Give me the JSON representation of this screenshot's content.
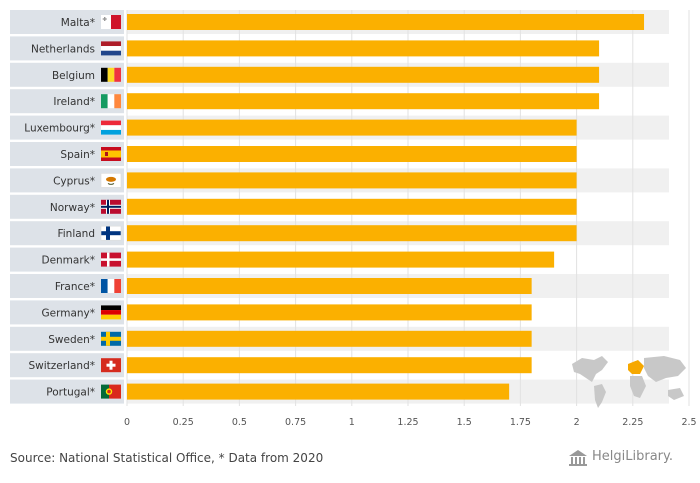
{
  "chart_data": {
    "type": "bar",
    "orientation": "horizontal",
    "title": "",
    "xlabel": "",
    "ylabel": "",
    "categories": [
      "Malta*",
      "Netherlands",
      "Belgium",
      "Ireland*",
      "Luxembourg*",
      "Spain*",
      "Cyprus*",
      "Norway*",
      "Finland",
      "Denmark*",
      "France*",
      "Germany*",
      "Sweden*",
      "Switzerland*",
      "Portugal*"
    ],
    "values": [
      2.3,
      2.1,
      2.1,
      2.1,
      2.0,
      2.0,
      2.0,
      2.0,
      2.0,
      1.9,
      1.8,
      1.8,
      1.8,
      1.8,
      1.7
    ],
    "xlim": [
      0,
      2.5
    ],
    "xticks": [
      "0",
      "0.25",
      "0.5",
      "0.75",
      "1",
      "1.25",
      "1.5",
      "1.75",
      "2",
      "2.25",
      "2.5"
    ],
    "grid": true,
    "bar_color": "#fbb000",
    "label_band_color": "#dde2e8",
    "stripe_color": "#f0f0f0"
  },
  "flags": [
    "malta-flag",
    "netherlands-flag",
    "belgium-flag",
    "ireland-flag",
    "luxembourg-flag",
    "spain-flag",
    "cyprus-flag",
    "norway-flag",
    "finland-flag",
    "denmark-flag",
    "france-flag",
    "germany-flag",
    "sweden-flag",
    "switzerland-flag",
    "portugal-flag"
  ],
  "footer": {
    "source": "Source: National Statistical Office, * Data from 2020",
    "brand": "HelgiLibrary."
  }
}
